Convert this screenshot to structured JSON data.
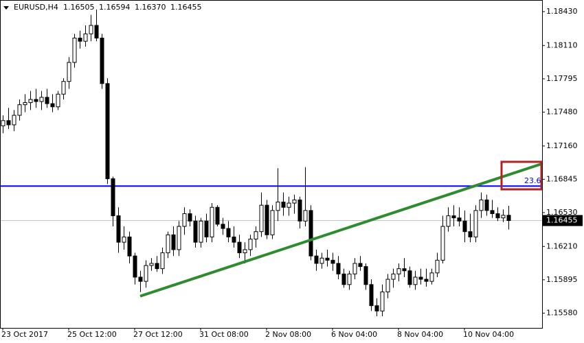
{
  "chart_data": {
    "type": "candlestick",
    "header": {
      "symbol": "EURUSD,H4",
      "value_labels": [
        "1.16505",
        "1.16594",
        "1.16370",
        "1.16455"
      ]
    },
    "categories": [
      "23 Oct 2017",
      null,
      null,
      null,
      null,
      null,
      null,
      null,
      null,
      null,
      null,
      null,
      "25 Oct 12:00",
      null,
      null,
      null,
      null,
      null,
      null,
      null,
      null,
      null,
      null,
      null,
      "27 Oct 12:00",
      null,
      null,
      null,
      null,
      null,
      null,
      null,
      null,
      null,
      null,
      null,
      "31 Oct 08:00",
      null,
      null,
      null,
      null,
      null,
      null,
      null,
      null,
      null,
      null,
      null,
      "2 Nov 08:00",
      null,
      null,
      null,
      null,
      null,
      null,
      null,
      null,
      null,
      null,
      null,
      "6 Nov 04:00",
      null,
      null,
      null,
      null,
      null,
      null,
      null,
      null,
      null,
      null,
      null,
      "8 Nov 04:00",
      null,
      null,
      null,
      null,
      null,
      null,
      null,
      null,
      null,
      null,
      null,
      "10 Nov 04:00",
      null,
      null,
      null,
      null,
      null,
      null,
      null,
      null
    ],
    "open": [
      1.1735,
      1.174,
      1.1736,
      1.1745,
      1.1755,
      1.1757,
      1.176,
      1.1758,
      1.1762,
      1.1756,
      1.1753,
      1.1765,
      1.1777,
      1.1795,
      1.1818,
      1.1815,
      1.1822,
      1.183,
      1.1818,
      1.1775,
      1.1685,
      1.165,
      1.1625,
      1.163,
      1.1612,
      1.1592,
      1.1588,
      1.1603,
      1.1605,
      1.16,
      1.1615,
      1.1632,
      1.1618,
      1.164,
      1.1652,
      1.1645,
      1.1625,
      1.1645,
      1.163,
      1.1658,
      1.1642,
      1.1638,
      1.163,
      1.1625,
      1.1615,
      1.1618,
      1.1628,
      1.1635,
      1.166,
      1.1632,
      1.1655,
      1.1663,
      1.1658,
      1.1662,
      1.1665,
      1.1645,
      1.1655,
      1.1612,
      1.1605,
      1.161,
      1.1608,
      1.1605,
      1.1595,
      1.1585,
      1.1595,
      1.1605,
      1.1602,
      1.1585,
      1.1565,
      1.156,
      1.1578,
      1.159,
      1.1595,
      1.16,
      1.1598,
      1.1585,
      1.1592,
      1.159,
      1.1588,
      1.1596,
      1.1608,
      1.164,
      1.165,
      1.1648,
      1.1645,
      1.1635,
      1.163,
      1.1655,
      1.1665,
      1.1655,
      1.1652,
      1.1648,
      1.16505
    ],
    "high": [
      1.1745,
      1.1752,
      1.175,
      1.176,
      1.1765,
      1.1768,
      1.177,
      1.1768,
      1.177,
      1.1765,
      1.1768,
      1.178,
      1.18,
      1.1822,
      1.1825,
      1.183,
      1.184,
      1.1845,
      1.1822,
      1.178,
      1.1687,
      1.1658,
      1.164,
      1.1635,
      1.1615,
      1.1598,
      1.1608,
      1.161,
      1.1612,
      1.162,
      1.1635,
      1.164,
      1.1645,
      1.1658,
      1.1656,
      1.165,
      1.1648,
      1.1652,
      1.1662,
      1.166,
      1.1648,
      1.1645,
      1.164,
      1.1632,
      1.1625,
      1.1632,
      1.164,
      1.1672,
      1.1665,
      1.166,
      1.1695,
      1.1672,
      1.1668,
      1.167,
      1.1668,
      1.1696,
      1.166,
      1.1618,
      1.1615,
      1.1618,
      1.1615,
      1.1612,
      1.16,
      1.1598,
      1.161,
      1.1612,
      1.1605,
      1.159,
      1.1572,
      1.1585,
      1.1595,
      1.16,
      1.1605,
      1.161,
      1.1602,
      1.1598,
      1.16,
      1.16,
      1.16,
      1.1615,
      1.165,
      1.1658,
      1.166,
      1.1658,
      1.1655,
      1.1652,
      1.166,
      1.1672,
      1.167,
      1.1665,
      1.1658,
      1.1656,
      1.16594
    ],
    "low": [
      1.1728,
      1.1732,
      1.173,
      1.174,
      1.1748,
      1.175,
      1.1752,
      1.175,
      1.1752,
      1.1748,
      1.175,
      1.176,
      1.177,
      1.179,
      1.1808,
      1.181,
      1.1815,
      1.1815,
      1.177,
      1.168,
      1.164,
      1.1615,
      1.1618,
      1.1605,
      1.1585,
      1.1578,
      1.1582,
      1.1598,
      1.1597,
      1.1595,
      1.161,
      1.1612,
      1.1612,
      1.1632,
      1.164,
      1.162,
      1.162,
      1.1625,
      1.1625,
      1.164,
      1.1632,
      1.1625,
      1.162,
      1.161,
      1.1605,
      1.1612,
      1.162,
      1.163,
      1.1628,
      1.1628,
      1.1645,
      1.165,
      1.165,
      1.1652,
      1.1638,
      1.164,
      1.1608,
      1.1598,
      1.16,
      1.1602,
      1.1598,
      1.159,
      1.1582,
      1.158,
      1.159,
      1.1598,
      1.158,
      1.156,
      1.1555,
      1.1555,
      1.1572,
      1.1582,
      1.1588,
      1.1592,
      1.1582,
      1.158,
      1.1585,
      1.1583,
      1.1585,
      1.1592,
      1.1605,
      1.1635,
      1.164,
      1.164,
      1.1625,
      1.1625,
      1.1625,
      1.1648,
      1.165,
      1.1648,
      1.1645,
      1.1644,
      1.1637
    ],
    "close": [
      1.174,
      1.1736,
      1.1745,
      1.1755,
      1.1757,
      1.176,
      1.1758,
      1.1762,
      1.1756,
      1.1753,
      1.1765,
      1.1777,
      1.1795,
      1.1818,
      1.1815,
      1.1822,
      1.183,
      1.1818,
      1.1775,
      1.1685,
      1.165,
      1.1625,
      1.163,
      1.1612,
      1.1592,
      1.1588,
      1.1603,
      1.1605,
      1.16,
      1.1615,
      1.1632,
      1.1618,
      1.164,
      1.1652,
      1.1645,
      1.1625,
      1.1645,
      1.163,
      1.1658,
      1.1642,
      1.1638,
      1.163,
      1.1625,
      1.1615,
      1.1618,
      1.1628,
      1.1635,
      1.166,
      1.1632,
      1.1655,
      1.1663,
      1.1658,
      1.1662,
      1.1665,
      1.1645,
      1.1655,
      1.1612,
      1.1605,
      1.161,
      1.1608,
      1.1605,
      1.1595,
      1.1585,
      1.1595,
      1.1605,
      1.1602,
      1.1585,
      1.1565,
      1.156,
      1.1578,
      1.159,
      1.1595,
      1.16,
      1.1598,
      1.1585,
      1.1592,
      1.159,
      1.1588,
      1.1596,
      1.1608,
      1.164,
      1.165,
      1.1648,
      1.1645,
      1.1635,
      1.163,
      1.1655,
      1.1665,
      1.1655,
      1.1652,
      1.1648,
      1.16505,
      1.16455
    ],
    "ylim": [
      1.1544,
      1.1854
    ],
    "yticks": [
      {
        "value": 1.1843,
        "label": "1.18430"
      },
      {
        "value": 1.1811,
        "label": "1.18110"
      },
      1.17795,
      {
        "value": 1.1748,
        "label": "1.17480"
      },
      {
        "value": 1.1716,
        "label": "1.17160"
      },
      1.16845,
      {
        "value": 1.1653,
        "label": "1.16530"
      },
      {
        "value": 1.1621,
        "label": "1.16210"
      },
      1.15895,
      {
        "value": 1.1558,
        "label": "1.15580"
      }
    ],
    "hline": {
      "value": 1.16781,
      "color": "#0000ff",
      "label": "23.6"
    },
    "trendline": {
      "color": "#2e8b2e",
      "x": [
        25,
        98
      ],
      "y": [
        1.1574,
        1.1699
      ]
    },
    "rectangle": {
      "color": "#b22222",
      "x": [
        90.75,
        98
      ],
      "y": [
        1.1675,
        1.1701
      ]
    }
  }
}
